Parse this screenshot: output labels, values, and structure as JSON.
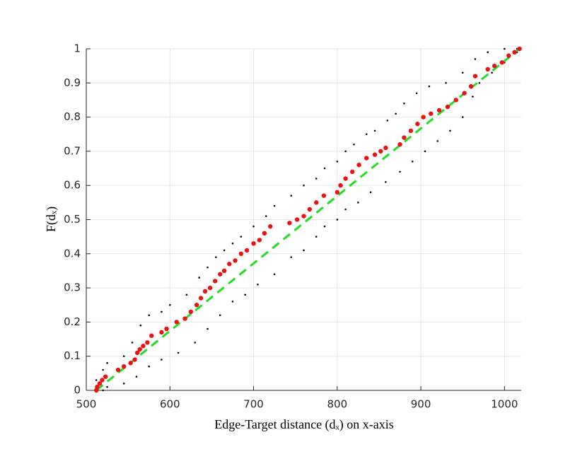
{
  "chart_data": {
    "type": "scatter",
    "xlabel": "Edge-Target distance (dₓ) on x-axis",
    "ylabel": "F(dₓ)",
    "xlim": [
      500,
      1020
    ],
    "ylim": [
      0,
      1
    ],
    "xticks": [
      500,
      600,
      700,
      800,
      900,
      1000
    ],
    "yticks": [
      0,
      0.1,
      0.2,
      0.3,
      0.4,
      0.5,
      0.6,
      0.7,
      0.8,
      0.9,
      1
    ],
    "grid": true,
    "series": [
      {
        "color": "#000000",
        "style": "dots",
        "x": [
          512,
          520,
          525,
          545,
          555,
          565,
          575,
          590,
          600,
          620,
          635,
          645,
          655,
          665,
          675,
          685,
          700,
          715,
          725,
          745,
          760,
          775,
          785,
          800,
          810,
          820,
          835,
          845,
          860,
          870,
          880,
          895,
          910,
          930,
          950,
          965,
          980,
          1000,
          1015
        ],
        "values": [
          0.03,
          0.06,
          0.08,
          0.1,
          0.14,
          0.19,
          0.22,
          0.23,
          0.25,
          0.28,
          0.33,
          0.36,
          0.39,
          0.41,
          0.43,
          0.45,
          0.48,
          0.51,
          0.54,
          0.57,
          0.6,
          0.62,
          0.65,
          0.67,
          0.7,
          0.72,
          0.75,
          0.76,
          0.79,
          0.81,
          0.84,
          0.87,
          0.89,
          0.9,
          0.93,
          0.97,
          0.99,
          1.0,
          1.0
        ]
      },
      {
        "color": "#000000",
        "style": "dots",
        "x": [
          520,
          525,
          545,
          560,
          575,
          590,
          610,
          630,
          645,
          660,
          675,
          690,
          705,
          725,
          745,
          760,
          775,
          785,
          800,
          810,
          825,
          840,
          858,
          875,
          890,
          905,
          920,
          935,
          950,
          962,
          970,
          985,
          1000,
          1015
        ],
        "values": [
          0,
          0.01,
          0.02,
          0.04,
          0.07,
          0.09,
          0.11,
          0.14,
          0.18,
          0.22,
          0.26,
          0.28,
          0.31,
          0.34,
          0.39,
          0.41,
          0.45,
          0.48,
          0.5,
          0.53,
          0.55,
          0.58,
          0.61,
          0.64,
          0.67,
          0.7,
          0.73,
          0.76,
          0.8,
          0.86,
          0.9,
          0.93,
          0.96,
          0.99
        ]
      },
      {
        "color": "#22dd22",
        "style": "dashed",
        "x": [
          512,
          1018
        ],
        "values": [
          0,
          1
        ]
      },
      {
        "color": "#ee1111",
        "style": "markers",
        "x": [
          512,
          513,
          516,
          519,
          523,
          538,
          545,
          553,
          558,
          561,
          564,
          568,
          573,
          578,
          590,
          596,
          608,
          618,
          625,
          632,
          637,
          642,
          648,
          654,
          660,
          665,
          671,
          678,
          685,
          692,
          700,
          707,
          713,
          720,
          743,
          752,
          760,
          767,
          775,
          784,
          800,
          804,
          810,
          818,
          826,
          835,
          845,
          852,
          858,
          875,
          880,
          888,
          896,
          903,
          912,
          922,
          932,
          942,
          952,
          960,
          965,
          980,
          988,
          997,
          1005,
          1012,
          1018
        ],
        "values": [
          0.0,
          0.01,
          0.02,
          0.03,
          0.04,
          0.06,
          0.07,
          0.08,
          0.09,
          0.11,
          0.12,
          0.13,
          0.14,
          0.16,
          0.17,
          0.18,
          0.2,
          0.21,
          0.23,
          0.25,
          0.27,
          0.29,
          0.3,
          0.32,
          0.34,
          0.35,
          0.37,
          0.38,
          0.4,
          0.41,
          0.43,
          0.44,
          0.46,
          0.48,
          0.49,
          0.5,
          0.51,
          0.53,
          0.55,
          0.57,
          0.58,
          0.6,
          0.62,
          0.64,
          0.66,
          0.68,
          0.69,
          0.7,
          0.71,
          0.72,
          0.74,
          0.76,
          0.78,
          0.8,
          0.81,
          0.82,
          0.83,
          0.85,
          0.87,
          0.89,
          0.92,
          0.94,
          0.95,
          0.96,
          0.98,
          0.99,
          1.0
        ]
      }
    ]
  }
}
